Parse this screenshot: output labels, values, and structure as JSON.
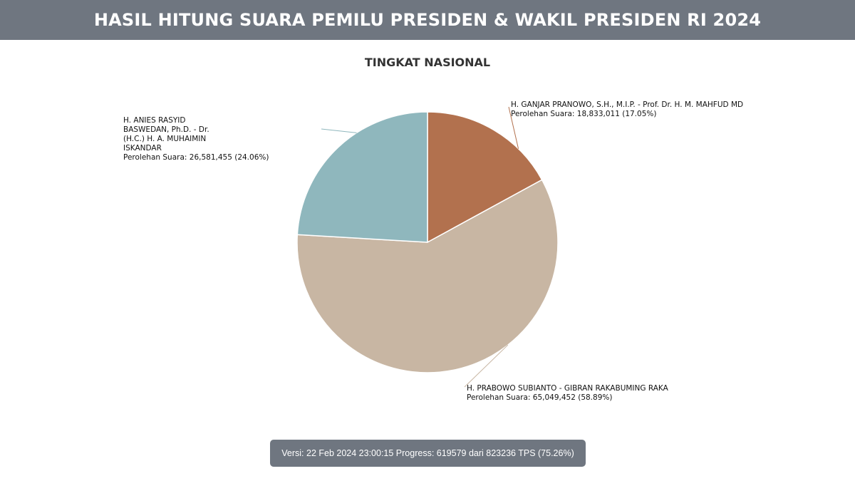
{
  "header": {
    "title": "HASIL HITUNG SUARA PEMILU PRESIDEN & WAKIL PRESIDEN RI 2024"
  },
  "footer": {
    "status": "Versi: 22 Feb 2024 23:00:15 Progress: 619579 dari 823236 TPS (75.26%)"
  },
  "chart_data": {
    "type": "pie",
    "title": "TINGKAT NASIONAL",
    "start_angle_deg": 0,
    "direction": "clockwise",
    "slices": [
      {
        "name": "H. GANJAR PRANOWO, S.H., M.I.P. - Prof. Dr. H. M. MAHFUD MD",
        "votes_text": "Perolehan Suara: 18,833,011 (17.05%)",
        "value": 18833011,
        "percent": 17.05,
        "color": "#b2714e"
      },
      {
        "name": "H. PRABOWO SUBIANTO - GIBRAN RAKABUMING RAKA",
        "votes_text": "Perolehan Suara: 65,049,452 (58.89%)",
        "value": 65049452,
        "percent": 58.89,
        "color": "#c8b6a3"
      },
      {
        "name": "H. ANIES RASYID BASWEDAN, Ph.D. - Dr. (H.C.) H. A. MUHAIMIN ISKANDAR",
        "votes_text": "Perolehan Suara: 26,581,455 (24.06%)",
        "value": 26581455,
        "percent": 24.06,
        "color": "#8fb7bd"
      }
    ]
  }
}
